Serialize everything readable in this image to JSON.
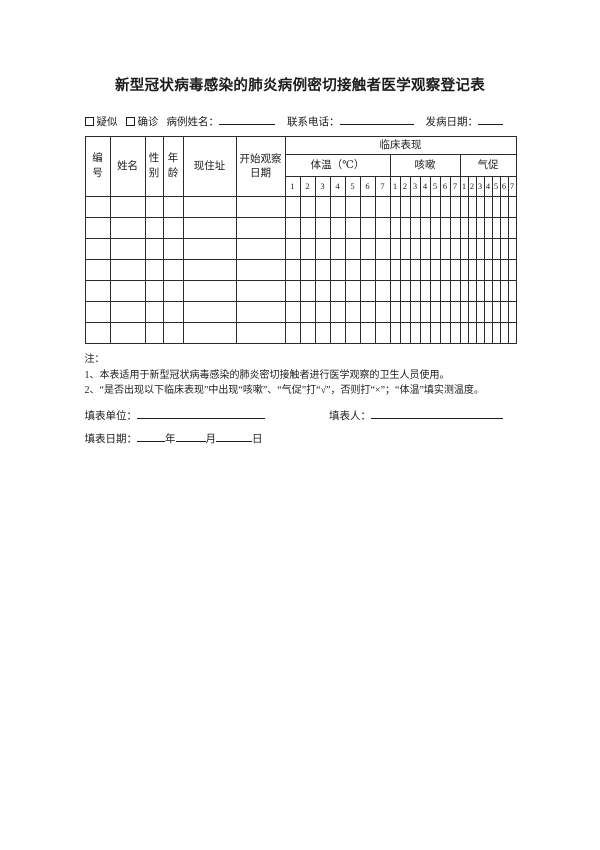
{
  "title": "新型冠状病毒感染的肺炎病例密切接触者医学观察登记表",
  "case_line": {
    "suspected_label": "疑似",
    "confirmed_label": "确诊",
    "case_name_label": "病例姓名：",
    "phone_label": "联系电话：",
    "onset_date_label": "发病日期："
  },
  "table": {
    "headers": {
      "number": "编号",
      "name": "姓名",
      "gender": "性别",
      "age": "年龄",
      "address": "现住址",
      "start_date": "开始观察日期",
      "clinical": "临床表现",
      "temperature": "体温（℃）",
      "cough": "咳嗽",
      "shortness_of_breath": "气促"
    },
    "day_numbers": [
      "1",
      "2",
      "3",
      "4",
      "5",
      "6",
      "7"
    ],
    "empty_rows": 7
  },
  "notes": {
    "label": "注：",
    "items": [
      "1、本表适用于新型冠状病毒感染的肺炎密切接触者进行医学观察的卫生人员使用。",
      "2、“是否出现以下临床表现”中出现“咳嗽”、“气促”打“√”，否则打“×”；“体温”填实测温度。"
    ]
  },
  "footer": {
    "unit_label": "填表单位：",
    "filler_label": "填表人：",
    "date_label": "填表日期：",
    "year_label": "年",
    "month_label": "月",
    "day_label": "日"
  }
}
